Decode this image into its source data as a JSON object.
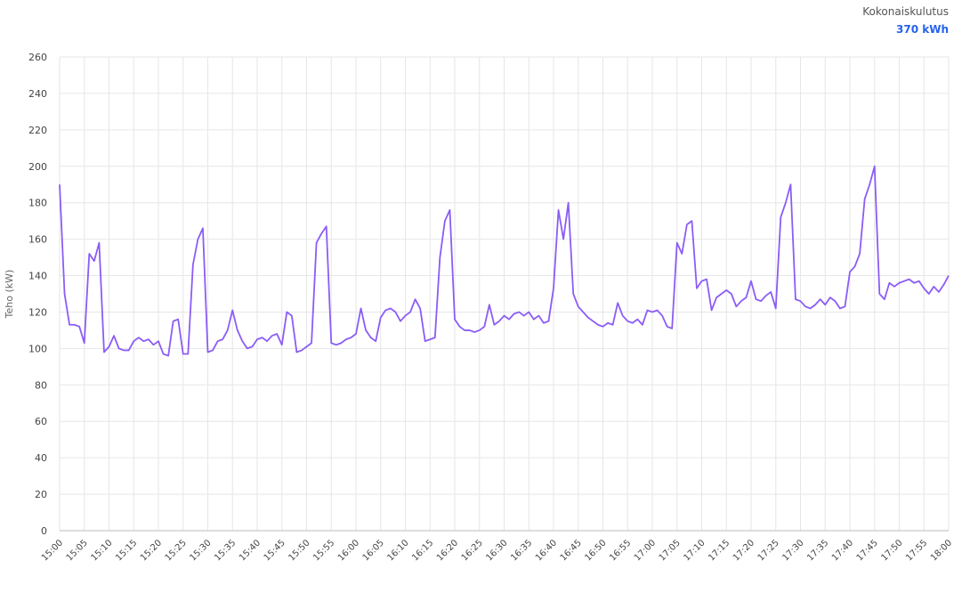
{
  "chart_data": {
    "type": "line",
    "total_label": "Kokonaiskulutus",
    "total_value": "370 kWh",
    "y_label": "Teho (kW)",
    "color": "#8b5cf6",
    "grid": true,
    "ylim": [
      0,
      260
    ],
    "yticks": [
      0,
      20,
      40,
      60,
      80,
      100,
      120,
      140,
      160,
      180,
      200,
      220,
      240,
      260
    ],
    "xlim": [
      "15:00",
      "18:00"
    ],
    "xticks": [
      "15:00",
      "15:05",
      "15:10",
      "15:15",
      "15:20",
      "15:25",
      "15:30",
      "15:35",
      "15:40",
      "15:45",
      "15:50",
      "15:55",
      "16:00",
      "16:05",
      "16:10",
      "16:15",
      "16:20",
      "16:25",
      "16:30",
      "16:35",
      "16:40",
      "16:45",
      "16:50",
      "16:55",
      "17:00",
      "17:05",
      "17:10",
      "17:15",
      "17:20",
      "17:25",
      "17:30",
      "17:35",
      "17:40",
      "17:45",
      "17:50",
      "17:55",
      "18:00"
    ],
    "x": [
      "15:00",
      "15:01",
      "15:02",
      "15:03",
      "15:04",
      "15:05",
      "15:06",
      "15:07",
      "15:08",
      "15:09",
      "15:10",
      "15:11",
      "15:12",
      "15:13",
      "15:14",
      "15:15",
      "15:16",
      "15:17",
      "15:18",
      "15:19",
      "15:20",
      "15:21",
      "15:22",
      "15:23",
      "15:24",
      "15:25",
      "15:26",
      "15:27",
      "15:28",
      "15:29",
      "15:30",
      "15:31",
      "15:32",
      "15:33",
      "15:34",
      "15:35",
      "15:36",
      "15:37",
      "15:38",
      "15:39",
      "15:40",
      "15:41",
      "15:42",
      "15:43",
      "15:44",
      "15:45",
      "15:46",
      "15:47",
      "15:48",
      "15:49",
      "15:50",
      "15:51",
      "15:52",
      "15:53",
      "15:54",
      "15:55",
      "15:56",
      "15:57",
      "15:58",
      "15:59",
      "16:00",
      "16:01",
      "16:02",
      "16:03",
      "16:04",
      "16:05",
      "16:06",
      "16:07",
      "16:08",
      "16:09",
      "16:10",
      "16:11",
      "16:12",
      "16:13",
      "16:14",
      "16:15",
      "16:16",
      "16:17",
      "16:18",
      "16:19",
      "16:20",
      "16:21",
      "16:22",
      "16:23",
      "16:24",
      "16:25",
      "16:26",
      "16:27",
      "16:28",
      "16:29",
      "16:30",
      "16:31",
      "16:32",
      "16:33",
      "16:34",
      "16:35",
      "16:36",
      "16:37",
      "16:38",
      "16:39",
      "16:40",
      "16:41",
      "16:42",
      "16:43",
      "16:44",
      "16:45",
      "16:46",
      "16:47",
      "16:48",
      "16:49",
      "16:50",
      "16:51",
      "16:52",
      "16:53",
      "16:54",
      "16:55",
      "16:56",
      "16:57",
      "16:58",
      "16:59",
      "17:00",
      "17:01",
      "17:02",
      "17:03",
      "17:04",
      "17:05",
      "17:06",
      "17:07",
      "17:08",
      "17:09",
      "17:10",
      "17:11",
      "17:12",
      "17:13",
      "17:14",
      "17:15",
      "17:16",
      "17:17",
      "17:18",
      "17:19",
      "17:20",
      "17:21",
      "17:22",
      "17:23",
      "17:24",
      "17:25",
      "17:26",
      "17:27",
      "17:28",
      "17:29",
      "17:30",
      "17:31",
      "17:32",
      "17:33",
      "17:34",
      "17:35",
      "17:36",
      "17:37",
      "17:38",
      "17:39",
      "17:40",
      "17:41",
      "17:42",
      "17:43",
      "17:44",
      "17:45",
      "17:46",
      "17:47",
      "17:48",
      "17:49",
      "17:50",
      "17:51",
      "17:52",
      "17:53",
      "17:54",
      "17:55",
      "17:56",
      "17:57",
      "17:58",
      "17:59",
      "18:00"
    ],
    "values": [
      190,
      130,
      113,
      113,
      112,
      103,
      152,
      148,
      158,
      98,
      101,
      107,
      100,
      99,
      99,
      104,
      106,
      104,
      105,
      102,
      104,
      97,
      96,
      115,
      116,
      97,
      97,
      146,
      160,
      166,
      98,
      99,
      104,
      105,
      110,
      121,
      110,
      104,
      100,
      101,
      105,
      106,
      104,
      107,
      108,
      102,
      120,
      118,
      98,
      99,
      101,
      103,
      158,
      163,
      167,
      103,
      102,
      103,
      105,
      106,
      108,
      122,
      110,
      106,
      104,
      117,
      121,
      122,
      120,
      115,
      118,
      120,
      127,
      122,
      104,
      105,
      106,
      150,
      170,
      176,
      116,
      112,
      110,
      110,
      109,
      110,
      112,
      124,
      113,
      115,
      118,
      116,
      119,
      120,
      118,
      120,
      116,
      118,
      114,
      115,
      133,
      176,
      160,
      180,
      130,
      123,
      120,
      117,
      115,
      113,
      112,
      114,
      113,
      125,
      118,
      115,
      114,
      116,
      113,
      121,
      120,
      121,
      118,
      112,
      111,
      158,
      152,
      168,
      170,
      133,
      137,
      138,
      121,
      128,
      130,
      132,
      130,
      123,
      126,
      128,
      137,
      127,
      126,
      129,
      131,
      122,
      172,
      180,
      190,
      127,
      126,
      123,
      122,
      124,
      127,
      124,
      128,
      126,
      122,
      123,
      142,
      145,
      152,
      182,
      190,
      200,
      130,
      127,
      136,
      134,
      136,
      137,
      138,
      136,
      137,
      133,
      130,
      134,
      131,
      135,
      140
    ]
  }
}
